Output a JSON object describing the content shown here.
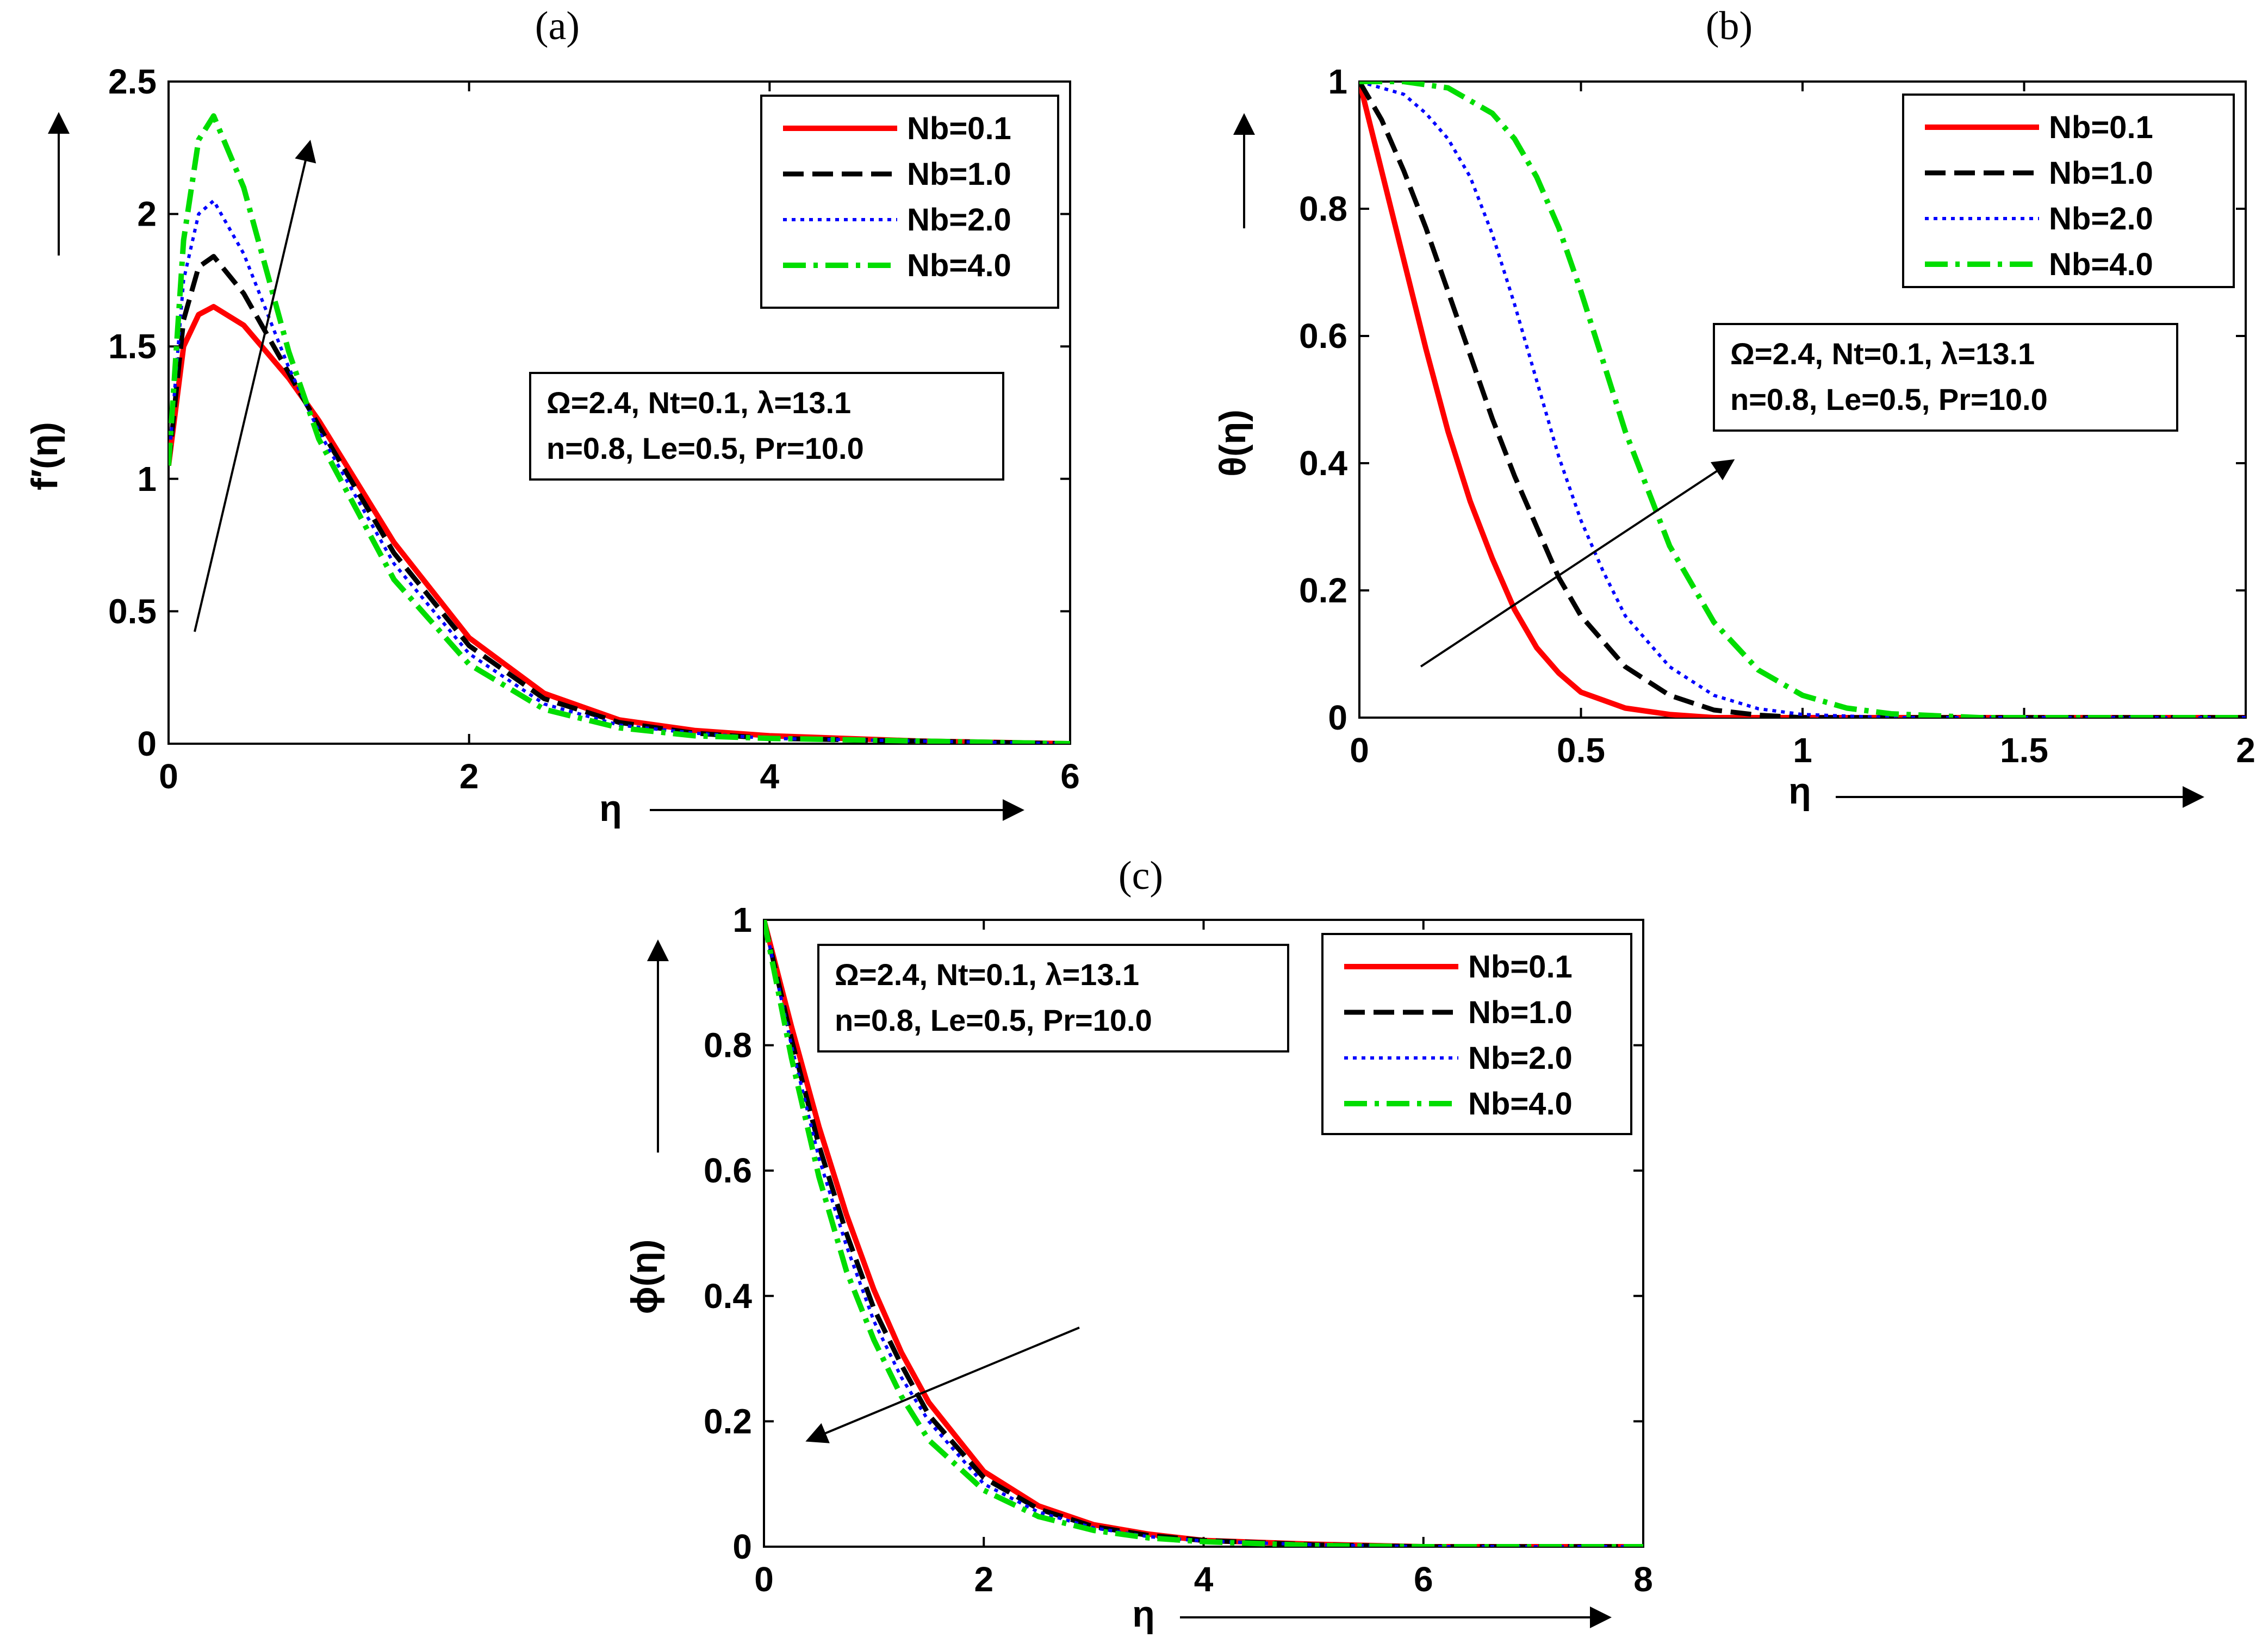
{
  "chart_data": [
    {
      "panel": "(a)",
      "type": "line",
      "xlabel": "η",
      "ylabel": "f′(η)",
      "xlim": [
        0,
        6
      ],
      "ylim": [
        0,
        2.5
      ],
      "xticks": [
        "0",
        "2",
        "4",
        "6"
      ],
      "yticks": [
        "0",
        "0.5",
        "1",
        "1.5",
        "2",
        "2.5"
      ],
      "legend_position": "top-right",
      "params": [
        "Ω=2.4, Nt=0.1, λ=13.1",
        "n=0.8, Le=0.5, Pr=10.0"
      ],
      "trend_arrow": "increasing Nb (upward)",
      "series": [
        {
          "name": "Nb=0.1",
          "x": [
            0,
            0.1,
            0.2,
            0.3,
            0.5,
            0.8,
            1.0,
            1.5,
            2.0,
            2.5,
            3.0,
            3.5,
            4.0,
            5.0,
            6.0
          ],
          "values": [
            1.05,
            1.5,
            1.62,
            1.65,
            1.58,
            1.38,
            1.22,
            0.76,
            0.4,
            0.19,
            0.09,
            0.05,
            0.03,
            0.01,
            0.0
          ]
        },
        {
          "name": "Nb=1.0",
          "x": [
            0,
            0.1,
            0.2,
            0.3,
            0.5,
            0.8,
            1.0,
            1.5,
            2.0,
            2.5,
            3.0,
            3.5,
            4.0,
            5.0,
            6.0
          ],
          "values": [
            1.05,
            1.6,
            1.8,
            1.84,
            1.7,
            1.4,
            1.2,
            0.72,
            0.37,
            0.17,
            0.08,
            0.04,
            0.02,
            0.01,
            0.0
          ]
        },
        {
          "name": "Nb=2.0",
          "x": [
            0,
            0.1,
            0.2,
            0.3,
            0.5,
            0.8,
            1.0,
            1.5,
            2.0,
            2.5,
            3.0,
            3.5,
            4.0,
            5.0,
            6.0
          ],
          "values": [
            1.05,
            1.75,
            2.0,
            2.05,
            1.85,
            1.42,
            1.18,
            0.68,
            0.34,
            0.15,
            0.07,
            0.04,
            0.02,
            0.01,
            0.0
          ]
        },
        {
          "name": "Nb=4.0",
          "x": [
            0,
            0.1,
            0.2,
            0.3,
            0.5,
            0.8,
            1.0,
            1.5,
            2.0,
            2.5,
            3.0,
            3.5,
            4.0,
            5.0,
            6.0
          ],
          "values": [
            1.05,
            1.9,
            2.28,
            2.37,
            2.1,
            1.48,
            1.15,
            0.62,
            0.3,
            0.13,
            0.06,
            0.03,
            0.02,
            0.01,
            0.0
          ]
        }
      ]
    },
    {
      "panel": "(b)",
      "type": "line",
      "xlabel": "η",
      "ylabel": "θ(η)",
      "xlim": [
        0,
        2
      ],
      "ylim": [
        0,
        1
      ],
      "xticks": [
        "0",
        "0.5",
        "1",
        "1.5",
        "2"
      ],
      "yticks": [
        "0",
        "0.2",
        "0.4",
        "0.6",
        "0.8",
        "1"
      ],
      "legend_position": "top-right",
      "params": [
        "Ω=2.4, Nt=0.1, λ=13.1",
        "n=0.8, Le=0.5, Pr=10.0"
      ],
      "trend_arrow": "increasing Nb (upward-right)",
      "series": [
        {
          "name": "Nb=0.1",
          "x": [
            0,
            0.05,
            0.1,
            0.15,
            0.2,
            0.25,
            0.3,
            0.35,
            0.4,
            0.45,
            0.5,
            0.6,
            0.7,
            0.8,
            1.0,
            2.0
          ],
          "values": [
            1.0,
            0.86,
            0.72,
            0.58,
            0.45,
            0.34,
            0.25,
            0.17,
            0.11,
            0.07,
            0.04,
            0.015,
            0.005,
            0.0,
            0.0,
            0.0
          ]
        },
        {
          "name": "Nb=1.0",
          "x": [
            0,
            0.05,
            0.1,
            0.15,
            0.2,
            0.25,
            0.3,
            0.35,
            0.4,
            0.45,
            0.5,
            0.6,
            0.7,
            0.8,
            0.9,
            1.0,
            2.0
          ],
          "values": [
            1.0,
            0.94,
            0.86,
            0.77,
            0.67,
            0.57,
            0.47,
            0.38,
            0.3,
            0.22,
            0.16,
            0.08,
            0.035,
            0.012,
            0.004,
            0.0,
            0.0
          ]
        },
        {
          "name": "Nb=2.0",
          "x": [
            0,
            0.1,
            0.15,
            0.2,
            0.25,
            0.3,
            0.35,
            0.4,
            0.45,
            0.5,
            0.55,
            0.6,
            0.7,
            0.8,
            0.9,
            1.0,
            1.2,
            2.0
          ],
          "values": [
            1.0,
            0.98,
            0.95,
            0.91,
            0.85,
            0.76,
            0.65,
            0.53,
            0.41,
            0.31,
            0.23,
            0.16,
            0.08,
            0.035,
            0.014,
            0.005,
            0.0,
            0.0
          ]
        },
        {
          "name": "Nb=4.0",
          "x": [
            0,
            0.1,
            0.2,
            0.3,
            0.35,
            0.4,
            0.45,
            0.5,
            0.55,
            0.6,
            0.65,
            0.7,
            0.8,
            0.9,
            1.0,
            1.1,
            1.2,
            1.4,
            2.0
          ],
          "values": [
            1.0,
            1.0,
            0.99,
            0.95,
            0.91,
            0.85,
            0.77,
            0.67,
            0.56,
            0.45,
            0.36,
            0.27,
            0.15,
            0.075,
            0.035,
            0.015,
            0.006,
            0.0,
            0.0
          ]
        }
      ]
    },
    {
      "panel": "(c)",
      "type": "line",
      "xlabel": "η",
      "ylabel": "ϕ(η)",
      "xlim": [
        0,
        8
      ],
      "ylim": [
        0,
        1
      ],
      "xticks": [
        "0",
        "2",
        "4",
        "6",
        "8"
      ],
      "yticks": [
        "0",
        "0.2",
        "0.4",
        "0.6",
        "0.8",
        "1"
      ],
      "legend_position": "top-right",
      "params": [
        "Ω=2.4, Nt=0.1, λ=13.1",
        "n=0.8, Le=0.5, Pr=10.0"
      ],
      "trend_arrow": "increasing Nb (downward-left)",
      "series": [
        {
          "name": "Nb=0.1",
          "x": [
            0,
            0.25,
            0.5,
            0.75,
            1.0,
            1.25,
            1.5,
            2.0,
            2.5,
            3.0,
            3.5,
            4.0,
            5.0,
            6.0,
            8.0
          ],
          "values": [
            1.0,
            0.83,
            0.67,
            0.53,
            0.41,
            0.31,
            0.23,
            0.12,
            0.065,
            0.035,
            0.02,
            0.01,
            0.004,
            0.0,
            0.0
          ]
        },
        {
          "name": "Nb=1.0",
          "x": [
            0,
            0.25,
            0.5,
            0.75,
            1.0,
            1.25,
            1.5,
            2.0,
            2.5,
            3.0,
            3.5,
            4.0,
            5.0,
            6.0,
            8.0
          ],
          "values": [
            1.0,
            0.81,
            0.64,
            0.5,
            0.38,
            0.29,
            0.21,
            0.11,
            0.06,
            0.032,
            0.018,
            0.01,
            0.003,
            0.0,
            0.0
          ]
        },
        {
          "name": "Nb=2.0",
          "x": [
            0,
            0.25,
            0.5,
            0.75,
            1.0,
            1.25,
            1.5,
            2.0,
            2.5,
            3.0,
            3.5,
            4.0,
            5.0,
            6.0,
            8.0
          ],
          "values": [
            1.0,
            0.8,
            0.62,
            0.48,
            0.36,
            0.27,
            0.2,
            0.1,
            0.055,
            0.03,
            0.016,
            0.009,
            0.003,
            0.0,
            0.0
          ]
        },
        {
          "name": "Nb=4.0",
          "x": [
            0,
            0.25,
            0.5,
            0.75,
            1.0,
            1.25,
            1.5,
            2.0,
            2.5,
            3.0,
            3.5,
            4.0,
            5.0,
            6.0,
            8.0
          ],
          "values": [
            1.0,
            0.78,
            0.59,
            0.44,
            0.33,
            0.24,
            0.17,
            0.09,
            0.048,
            0.026,
            0.014,
            0.008,
            0.002,
            0.0,
            0.0
          ]
        }
      ]
    }
  ],
  "style": {
    "colors": [
      "#ff0000",
      "#000000",
      "#0000ff",
      "#00dd00"
    ],
    "dashes": [
      "",
      "38,16",
      "7,9",
      "42,14,8,14"
    ],
    "widths": [
      10,
      9,
      6,
      10
    ]
  }
}
